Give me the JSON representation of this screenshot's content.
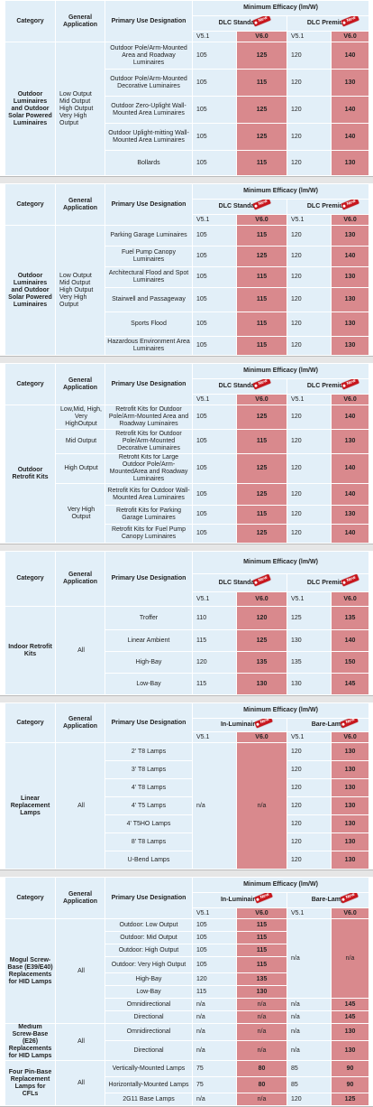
{
  "headers": {
    "category": "Category",
    "general_application": "General Application",
    "primary_use": "Primary Use Designation",
    "min_efficacy": "Minimum Efficacy (lm/W)",
    "dlc_standard": "DLC Standard",
    "dlc_premium": "DLC Premium",
    "in_luminaire": "In-Luminaire",
    "bare_lamp": "Bare-Lamp",
    "v51": "V5.1",
    "v60": "V6.0",
    "new_badge": "New",
    "colors": {
      "pink": "#d9898d",
      "light_blue": "#e2eff8",
      "badge_red": "#c8161d"
    }
  },
  "t1": {
    "category": "Outdoor Luminaires and Outdoor Solar Powered Luminaires",
    "application": "Low Output Mid Output High Output Very High Output",
    "rows": [
      {
        "use": "Outdoor Pole/Arm-Mounted Area and Roadway Luminaires",
        "s51": "105",
        "s60": "125",
        "p51": "120",
        "p60": "140"
      },
      {
        "use": "Outdoor Pole/Arm-Mounted Decorative Luminaires",
        "s51": "105",
        "s60": "115",
        "p51": "120",
        "p60": "130"
      },
      {
        "use": "Outdoor Zero-Uplight Wall-Mounted Area Luminaires",
        "s51": "105",
        "s60": "125",
        "p51": "120",
        "p60": "140"
      },
      {
        "use": "Outdoor Uplight-mitting Wall-Mounted Area Luminaires",
        "s51": "105",
        "s60": "125",
        "p51": "120",
        "p60": "140"
      },
      {
        "use": "Bollards",
        "s51": "105",
        "s60": "115",
        "p51": "120",
        "p60": "130"
      }
    ]
  },
  "t2": {
    "category": "Outdoor Luminaires and Outdoor Solar Powered Luminaires",
    "application": "Low Output Mid Output High Output Very High Output",
    "rows": [
      {
        "use": "Parking Garage Luminaires",
        "s51": "105",
        "s60": "115",
        "p51": "120",
        "p60": "130"
      },
      {
        "use": "Fuel Pump Canopy Luminaires",
        "s51": "105",
        "s60": "125",
        "p51": "120",
        "p60": "140"
      },
      {
        "use": "Architectural Flood and Spot Luminaires",
        "s51": "105",
        "s60": "115",
        "p51": "120",
        "p60": "130"
      },
      {
        "use": "Stairwell and Passageway",
        "s51": "105",
        "s60": "115",
        "p51": "120",
        "p60": "130"
      },
      {
        "use": "Sports Flood",
        "s51": "105",
        "s60": "115",
        "p51": "120",
        "p60": "130"
      },
      {
        "use": "Hazardous Environment Area Luminaires",
        "s51": "105",
        "s60": "115",
        "p51": "120",
        "p60": "130"
      }
    ]
  },
  "t3": {
    "category": "Outdoor Retrofit Kits",
    "applications": [
      "Low,Mid, High, Very HighOutput",
      "Mid Output",
      "High Output",
      "Very High Output"
    ],
    "rows": [
      {
        "use": "Retrofit Kits for Outdoor Pole/Arm-Mounted Area and Roadway Luminaires",
        "s51": "105",
        "s60": "125",
        "p51": "120",
        "p60": "140"
      },
      {
        "use": "Retrofit Kits for Outdoor Pole/Arm-Mounted Decorative Luminaires",
        "s51": "105",
        "s60": "115",
        "p51": "120",
        "p60": "130"
      },
      {
        "use": "Retrofit Kits for Large Outdoor Pole/Arm-MountedArea and Roadway Luminaires",
        "s51": "105",
        "s60": "125",
        "p51": "120",
        "p60": "140"
      },
      {
        "use": "Retrofit Kits for Outdoor Wall-Mounted Area Luminaires",
        "s51": "105",
        "s60": "125",
        "p51": "120",
        "p60": "140"
      },
      {
        "use": "Retrofit Kits for Parking Garage Luminaires",
        "s51": "105",
        "s60": "115",
        "p51": "120",
        "p60": "130"
      },
      {
        "use": "Retrofit Kits for Fuel Pump Canopy Luminaires",
        "s51": "105",
        "s60": "125",
        "p51": "120",
        "p60": "140"
      }
    ]
  },
  "t4": {
    "category": "Indoor Retrofit Kits",
    "application": "All",
    "rows": [
      {
        "use": "Troffer",
        "s51": "110",
        "s60": "120",
        "p51": "125",
        "p60": "135"
      },
      {
        "use": "Linear Ambient",
        "s51": "115",
        "s60": "125",
        "p51": "130",
        "p60": "140"
      },
      {
        "use": "High-Bay",
        "s51": "120",
        "s60": "135",
        "p51": "135",
        "p60": "150"
      },
      {
        "use": "Low-Bay",
        "s51": "115",
        "s60": "130",
        "p51": "130",
        "p60": "145"
      }
    ]
  },
  "t5": {
    "category": "Linear Replacement Lamps",
    "application": "All",
    "in_lum_v51": "n/a",
    "in_lum_v60": "n/a",
    "rows": [
      {
        "use": "2' T8 Lamps",
        "b51": "120",
        "b60": "130"
      },
      {
        "use": "3' T8 Lamps",
        "b51": "120",
        "b60": "130"
      },
      {
        "use": "4' T8 Lamps",
        "b51": "120",
        "b60": "130"
      },
      {
        "use": "4' T5 Lamps",
        "b51": "120",
        "b60": "130"
      },
      {
        "use": "4' T5HO Lamps",
        "b51": "120",
        "b60": "130"
      },
      {
        "use": "8' T8 Lamps",
        "b51": "120",
        "b60": "130"
      },
      {
        "use": "U-Bend Lamps",
        "b51": "120",
        "b60": "130"
      }
    ]
  },
  "t6": {
    "g1": {
      "category": "Mogul Screw-Base (E39/E40) Replacements for HID Lamps",
      "application": "All",
      "bare_v51": "n/a",
      "bare_v60": "n/a",
      "rows": [
        {
          "use": "Outdoor: Low Output",
          "i51": "105",
          "i60": "115"
        },
        {
          "use": "Outdoor: Mid Output",
          "i51": "105",
          "i60": "115"
        },
        {
          "use": "Outdoor: High Output",
          "i51": "105",
          "i60": "115"
        },
        {
          "use": "Outdoor: Very High Output",
          "i51": "105",
          "i60": "115"
        },
        {
          "use": "High-Bay",
          "i51": "120",
          "i60": "135"
        },
        {
          "use": "Low-Bay",
          "i51": "115",
          "i60": "130"
        },
        {
          "use": "Omnidirectional",
          "i51": "n/a",
          "i60": "n/a",
          "b51": "n/a",
          "b60": "145"
        },
        {
          "use": "Directional",
          "i51": "n/a",
          "i60": "n/a",
          "b51": "n/a",
          "b60": "145"
        }
      ]
    },
    "g2": {
      "category": "Medium Screw-Base (E26) Replacements for HID Lamps",
      "application": "All",
      "rows": [
        {
          "use": "Omnidirectional",
          "i51": "n/a",
          "i60": "n/a",
          "b51": "n/a",
          "b60": "130"
        },
        {
          "use": "Directional",
          "i51": "n/a",
          "i60": "n/a",
          "b51": "n/a",
          "b60": "130"
        }
      ]
    },
    "g3": {
      "category": "Four Pin-Base Replacement Lamps for CFLs",
      "application": "All",
      "rows": [
        {
          "use": "Vertically-Mounted Lamps",
          "i51": "75",
          "i60": "80",
          "b51": "85",
          "b60": "90"
        },
        {
          "use": "Horizontally-Mounted Lamps",
          "i51": "75",
          "i60": "80",
          "b51": "85",
          "b60": "90"
        },
        {
          "use": "2G11 Base Lamps",
          "i51": "n/a",
          "i60": "n/a",
          "b51": "120",
          "b60": "125"
        }
      ]
    }
  }
}
